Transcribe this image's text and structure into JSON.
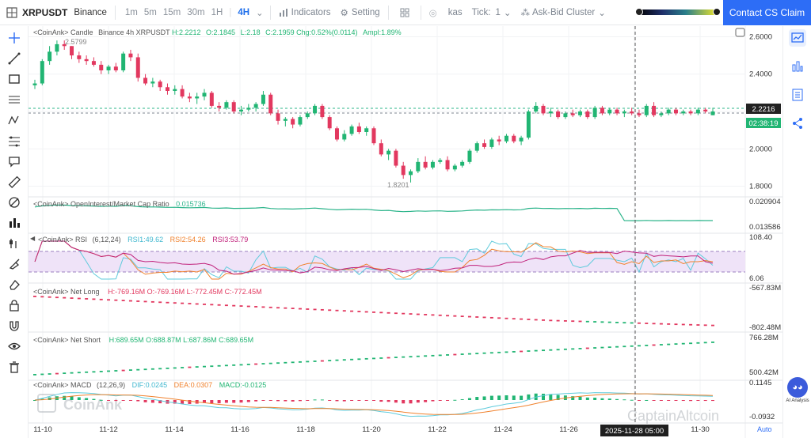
{
  "toolbar": {
    "symbol": "XRPUSDT",
    "exchange": "Binance",
    "timeframes": [
      "1m",
      "5m",
      "15m",
      "30m",
      "1H",
      "4H"
    ],
    "active_timeframe": "4H",
    "indicators_label": "Indicators",
    "setting_label": "Setting",
    "kas_label": "kas",
    "tick_label": "Tick:",
    "tick_value": "1",
    "cluster_label": "Ask-Bid Cluster",
    "contact_label": "Contact CS Claim"
  },
  "panes": {
    "candle": {
      "legend": "<CoinAnk> Candle",
      "instrument": "Binance 4h XRPUSDT",
      "high_label": "H:2.2212",
      "open_label": "O:2.1845",
      "low_label": "L:2.18",
      "close_label": "C:2.1959",
      "change_label": "Chg:0.52%(0.0114)",
      "ampl_label": "Ampl:1.89%",
      "max_label": "2.5799",
      "min_label": "1.8201",
      "axis": [
        "2.6000",
        "2.4000",
        "2.2000",
        "2.0000",
        "1.8000"
      ],
      "price_tag": "2.2216",
      "countdown_tag": "02:38:19"
    },
    "oi": {
      "legend": "<CoinAnk> OpenInterest/Market Cap Ratio",
      "value": "0.015736",
      "axis_top": "0.020904",
      "axis_bottom": "0.013586"
    },
    "rsi": {
      "legend": "<CoinAnk> RSI",
      "params": "(6,12,24)",
      "rsi1": "RSI1:49.62",
      "rsi2": "RSI2:54.26",
      "rsi3": "RSI3:53.79",
      "axis_top": "108.40",
      "axis_bottom": "6.06"
    },
    "netlong": {
      "legend": "<CoinAnk> Net Long",
      "values": "H:-769.16M  O:-769.16M  L:-772.45M  C:-772.45M",
      "axis_top": "-567.83M",
      "axis_bottom": "-802.48M"
    },
    "netshort": {
      "legend": "<CoinAnk> Net Short",
      "values": "H:689.65M  O:688.87M  L:687.86M  C:689.65M",
      "axis_top": "766.28M",
      "axis_bottom": "500.42M"
    },
    "macd": {
      "legend": "<CoinAnk> MACD",
      "params": "(12,26,9)",
      "dif": "DIF:0.0245",
      "dea": "DEA:0.0307",
      "macd": "MACD:-0.0125",
      "axis_top": "0.1145",
      "axis_bottom": "-0.0932"
    }
  },
  "xaxis": {
    "labels": [
      "11-10",
      "11-12",
      "11-14",
      "11-16",
      "11-18",
      "11-20",
      "11-22",
      "11-24",
      "11-26",
      "11-28",
      "11-30"
    ],
    "crosshair_time": "2025-11-28 05:00",
    "auto_label": "Auto"
  },
  "watermark": {
    "brand": "CoinAnk",
    "brand2": "CaptainAltcoin"
  },
  "ai_label": "AI Analysis",
  "colors": {
    "up": "#21b573",
    "down": "#e2385f",
    "accent": "#2d6df6",
    "rsi1": "#5fcbdc",
    "rsi2": "#f0822e",
    "rsi3": "#c0207a",
    "oi": "#2bb48a"
  },
  "chart_data": {
    "type": "candlestick",
    "x_start": "11-09",
    "candles": [
      [
        2.34,
        2.37,
        2.32,
        2.35
      ],
      [
        2.35,
        2.48,
        2.34,
        2.47
      ],
      [
        2.47,
        2.55,
        2.45,
        2.52
      ],
      [
        2.52,
        2.58,
        2.5,
        2.56
      ],
      [
        2.56,
        2.58,
        2.53,
        2.55
      ],
      [
        2.55,
        2.55,
        2.48,
        2.5
      ],
      [
        2.5,
        2.52,
        2.46,
        2.48
      ],
      [
        2.48,
        2.5,
        2.45,
        2.47
      ],
      [
        2.47,
        2.49,
        2.44,
        2.45
      ],
      [
        2.45,
        2.47,
        2.4,
        2.42
      ],
      [
        2.42,
        2.45,
        2.4,
        2.44
      ],
      [
        2.44,
        2.46,
        2.41,
        2.42
      ],
      [
        2.42,
        2.52,
        2.41,
        2.51
      ],
      [
        2.51,
        2.53,
        2.47,
        2.49
      ],
      [
        2.49,
        2.51,
        2.36,
        2.38
      ],
      [
        2.38,
        2.4,
        2.34,
        2.35
      ],
      [
        2.35,
        2.38,
        2.33,
        2.36
      ],
      [
        2.36,
        2.37,
        2.31,
        2.33
      ],
      [
        2.33,
        2.35,
        2.29,
        2.31
      ],
      [
        2.31,
        2.34,
        2.29,
        2.32
      ],
      [
        2.32,
        2.34,
        2.27,
        2.28
      ],
      [
        2.28,
        2.3,
        2.25,
        2.27
      ],
      [
        2.27,
        2.3,
        2.24,
        2.28
      ],
      [
        2.28,
        2.32,
        2.26,
        2.3
      ],
      [
        2.3,
        2.31,
        2.22,
        2.23
      ],
      [
        2.23,
        2.25,
        2.2,
        2.22
      ],
      [
        2.22,
        2.26,
        2.21,
        2.25
      ],
      [
        2.25,
        2.26,
        2.19,
        2.2
      ],
      [
        2.2,
        2.23,
        2.18,
        2.21
      ],
      [
        2.21,
        2.24,
        2.2,
        2.22
      ],
      [
        2.22,
        2.25,
        2.2,
        2.24
      ],
      [
        2.24,
        2.31,
        2.23,
        2.29
      ],
      [
        2.29,
        2.3,
        2.18,
        2.19
      ],
      [
        2.19,
        2.21,
        2.13,
        2.15
      ],
      [
        2.15,
        2.17,
        2.12,
        2.16
      ],
      [
        2.16,
        2.17,
        2.11,
        2.13
      ],
      [
        2.13,
        2.18,
        2.12,
        2.17
      ],
      [
        2.17,
        2.2,
        2.16,
        2.19
      ],
      [
        2.19,
        2.24,
        2.18,
        2.23
      ],
      [
        2.23,
        2.24,
        2.16,
        2.17
      ],
      [
        2.17,
        2.18,
        2.1,
        2.11
      ],
      [
        2.11,
        2.12,
        2.04,
        2.05
      ],
      [
        2.05,
        2.1,
        2.04,
        2.08
      ],
      [
        2.08,
        2.13,
        2.07,
        2.12
      ],
      [
        2.12,
        2.14,
        2.08,
        2.09
      ],
      [
        2.09,
        2.12,
        2.07,
        2.11
      ],
      [
        2.11,
        2.12,
        2.02,
        2.03
      ],
      [
        2.03,
        2.05,
        1.96,
        1.97
      ],
      [
        1.97,
        2.0,
        1.94,
        1.99
      ],
      [
        1.99,
        2.0,
        1.9,
        1.91
      ],
      [
        1.91,
        1.93,
        1.84,
        1.86
      ],
      [
        1.86,
        1.89,
        1.82,
        1.88
      ],
      [
        1.88,
        1.95,
        1.87,
        1.93
      ],
      [
        1.93,
        1.96,
        1.89,
        1.9
      ],
      [
        1.9,
        1.94,
        1.89,
        1.93
      ],
      [
        1.93,
        1.95,
        1.92,
        1.94
      ],
      [
        1.94,
        1.96,
        1.88,
        1.89
      ],
      [
        1.89,
        1.92,
        1.88,
        1.91
      ],
      [
        1.91,
        1.94,
        1.9,
        1.93
      ],
      [
        1.93,
        2.0,
        1.92,
        1.99
      ],
      [
        1.99,
        2.04,
        1.98,
        2.03
      ],
      [
        2.03,
        2.05,
        2.0,
        2.01
      ],
      [
        2.01,
        2.06,
        2.0,
        2.05
      ],
      [
        2.05,
        2.07,
        2.02,
        2.04
      ],
      [
        2.04,
        2.08,
        2.03,
        2.07
      ],
      [
        2.07,
        2.08,
        2.03,
        2.04
      ],
      [
        2.04,
        2.07,
        2.02,
        2.06
      ],
      [
        2.06,
        2.21,
        2.05,
        2.2
      ],
      [
        2.2,
        2.25,
        2.19,
        2.23
      ],
      [
        2.23,
        2.24,
        2.18,
        2.19
      ],
      [
        2.19,
        2.22,
        2.17,
        2.2
      ],
      [
        2.2,
        2.21,
        2.16,
        2.17
      ],
      [
        2.17,
        2.2,
        2.16,
        2.19
      ],
      [
        2.19,
        2.21,
        2.17,
        2.18
      ],
      [
        2.18,
        2.21,
        2.17,
        2.2
      ],
      [
        2.2,
        2.21,
        2.16,
        2.17
      ],
      [
        2.17,
        2.23,
        2.16,
        2.22
      ],
      [
        2.22,
        2.23,
        2.18,
        2.19
      ],
      [
        2.19,
        2.22,
        2.18,
        2.21
      ],
      [
        2.21,
        2.22,
        2.18,
        2.19
      ],
      [
        2.19,
        2.21,
        2.17,
        2.2
      ],
      [
        2.2,
        2.22,
        2.18,
        2.19
      ],
      [
        2.19,
        2.21,
        2.17,
        2.18
      ],
      [
        2.18,
        2.24,
        2.17,
        2.23
      ],
      [
        2.23,
        2.25,
        2.17,
        2.18
      ],
      [
        2.18,
        2.2,
        2.17,
        2.19
      ],
      [
        2.19,
        2.22,
        2.18,
        2.21
      ],
      [
        2.21,
        2.22,
        2.18,
        2.19
      ],
      [
        2.19,
        2.21,
        2.18,
        2.2
      ],
      [
        2.2,
        2.21,
        2.18,
        2.19
      ],
      [
        2.19,
        2.22,
        2.18,
        2.21
      ],
      [
        2.21,
        2.22,
        2.19,
        2.2
      ],
      [
        2.18,
        2.22,
        2.18,
        2.2
      ]
    ],
    "ylim": [
      1.76,
      2.64
    ]
  }
}
